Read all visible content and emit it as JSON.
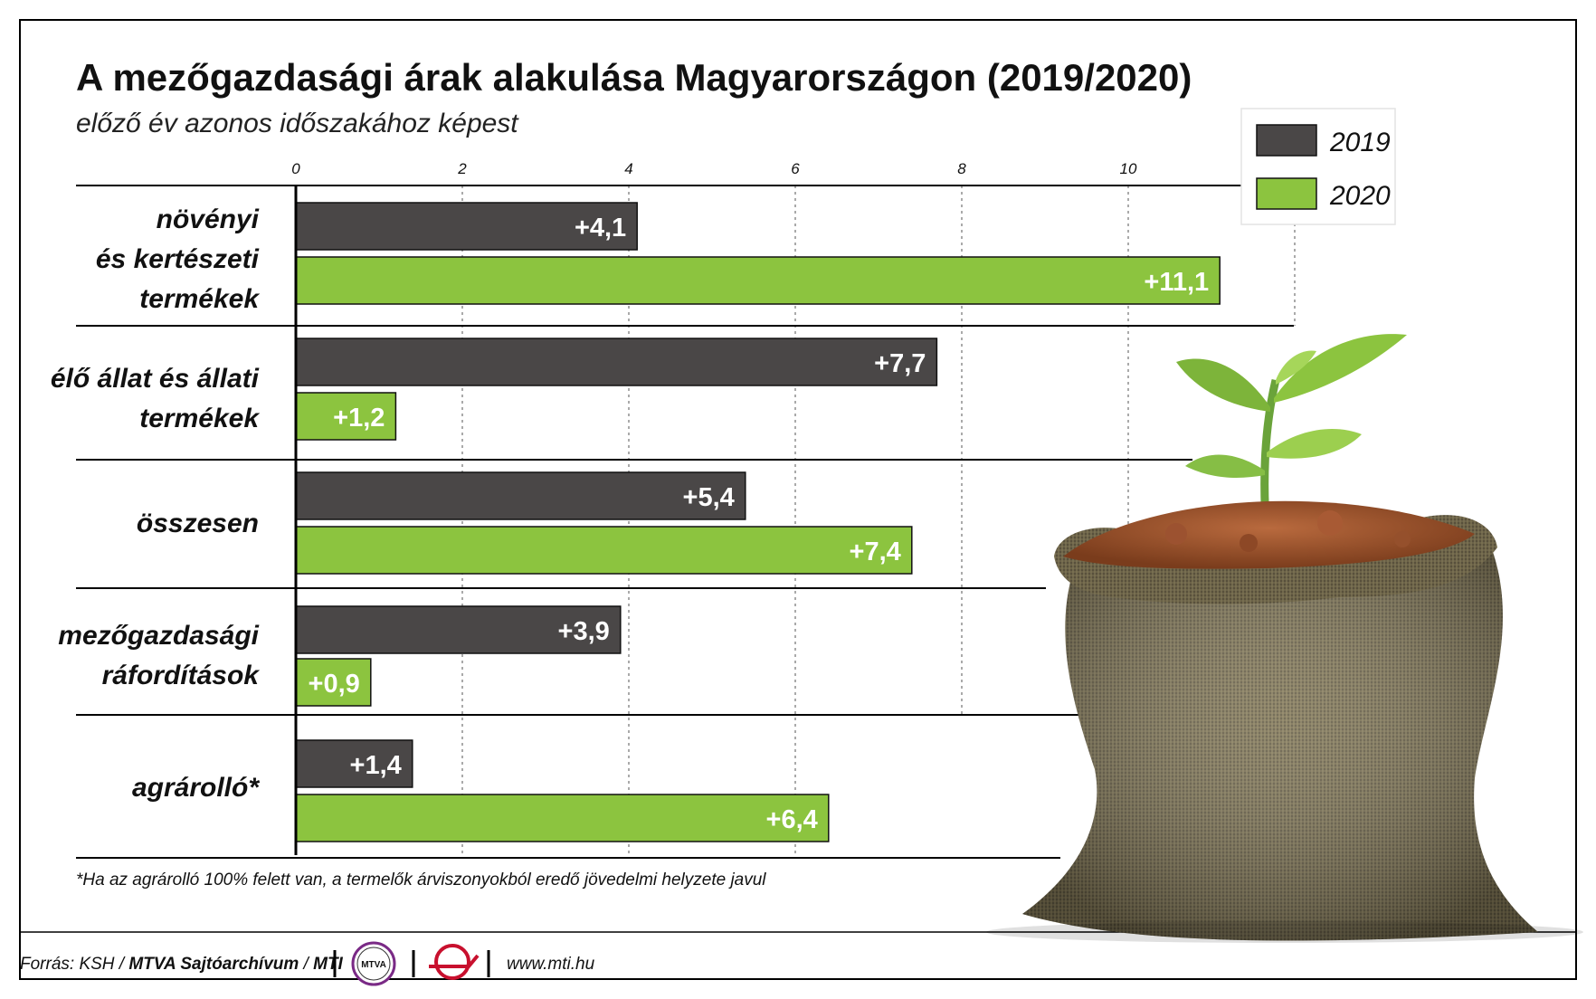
{
  "chart_data": {
    "type": "bar",
    "orientation": "horizontal",
    "title": "A mezőgazdasági árak alakulása Magyarországon (2019/2020)",
    "subtitle": "előző év azonos időszakához képest",
    "categories": [
      [
        "növényi",
        "és kertészeti",
        "termékek"
      ],
      [
        "élő állat és állati",
        "termékek"
      ],
      [
        "összesen"
      ],
      [
        "mezőgazdasági",
        "ráfordítások"
      ],
      [
        "agrárolló*"
      ]
    ],
    "series": [
      {
        "name": "2019",
        "color": "#4a4747",
        "values": [
          4.1,
          7.7,
          5.4,
          3.9,
          1.4
        ],
        "labels": [
          "+4,1",
          "+7,7",
          "+5,4",
          "+3,9",
          "+1,4"
        ]
      },
      {
        "name": "2020",
        "color": "#8cc43f",
        "values": [
          11.1,
          1.2,
          7.4,
          0.9,
          6.4
        ],
        "labels": [
          "+11,1",
          "+1,2",
          "+7,4",
          "+0,9",
          "+6,4"
        ]
      }
    ],
    "xticks": [
      "0",
      "2",
      "4",
      "6",
      "8",
      "10"
    ],
    "xlim": [
      0,
      12
    ],
    "grid": true,
    "legend_position": "top-right",
    "footnote": "*Ha az agrárolló 100% felett van, a termelők árviszonyokból eredő jövedelmi helyzete javul"
  },
  "footer": {
    "source_prefix": "Forrás: KSH / ",
    "source_bold": "MTVA Sajtóarchívum",
    "source_sep": " / ",
    "source_mti": "MTI",
    "mtva_logo_text": "MTVA",
    "website": "www.mti.hu",
    "mtva_logo_icon": "mtva-circle-logo",
    "mti_logo_icon": "mti-logo"
  },
  "illustration": {
    "icon": "burlap-sack-with-seedling"
  }
}
